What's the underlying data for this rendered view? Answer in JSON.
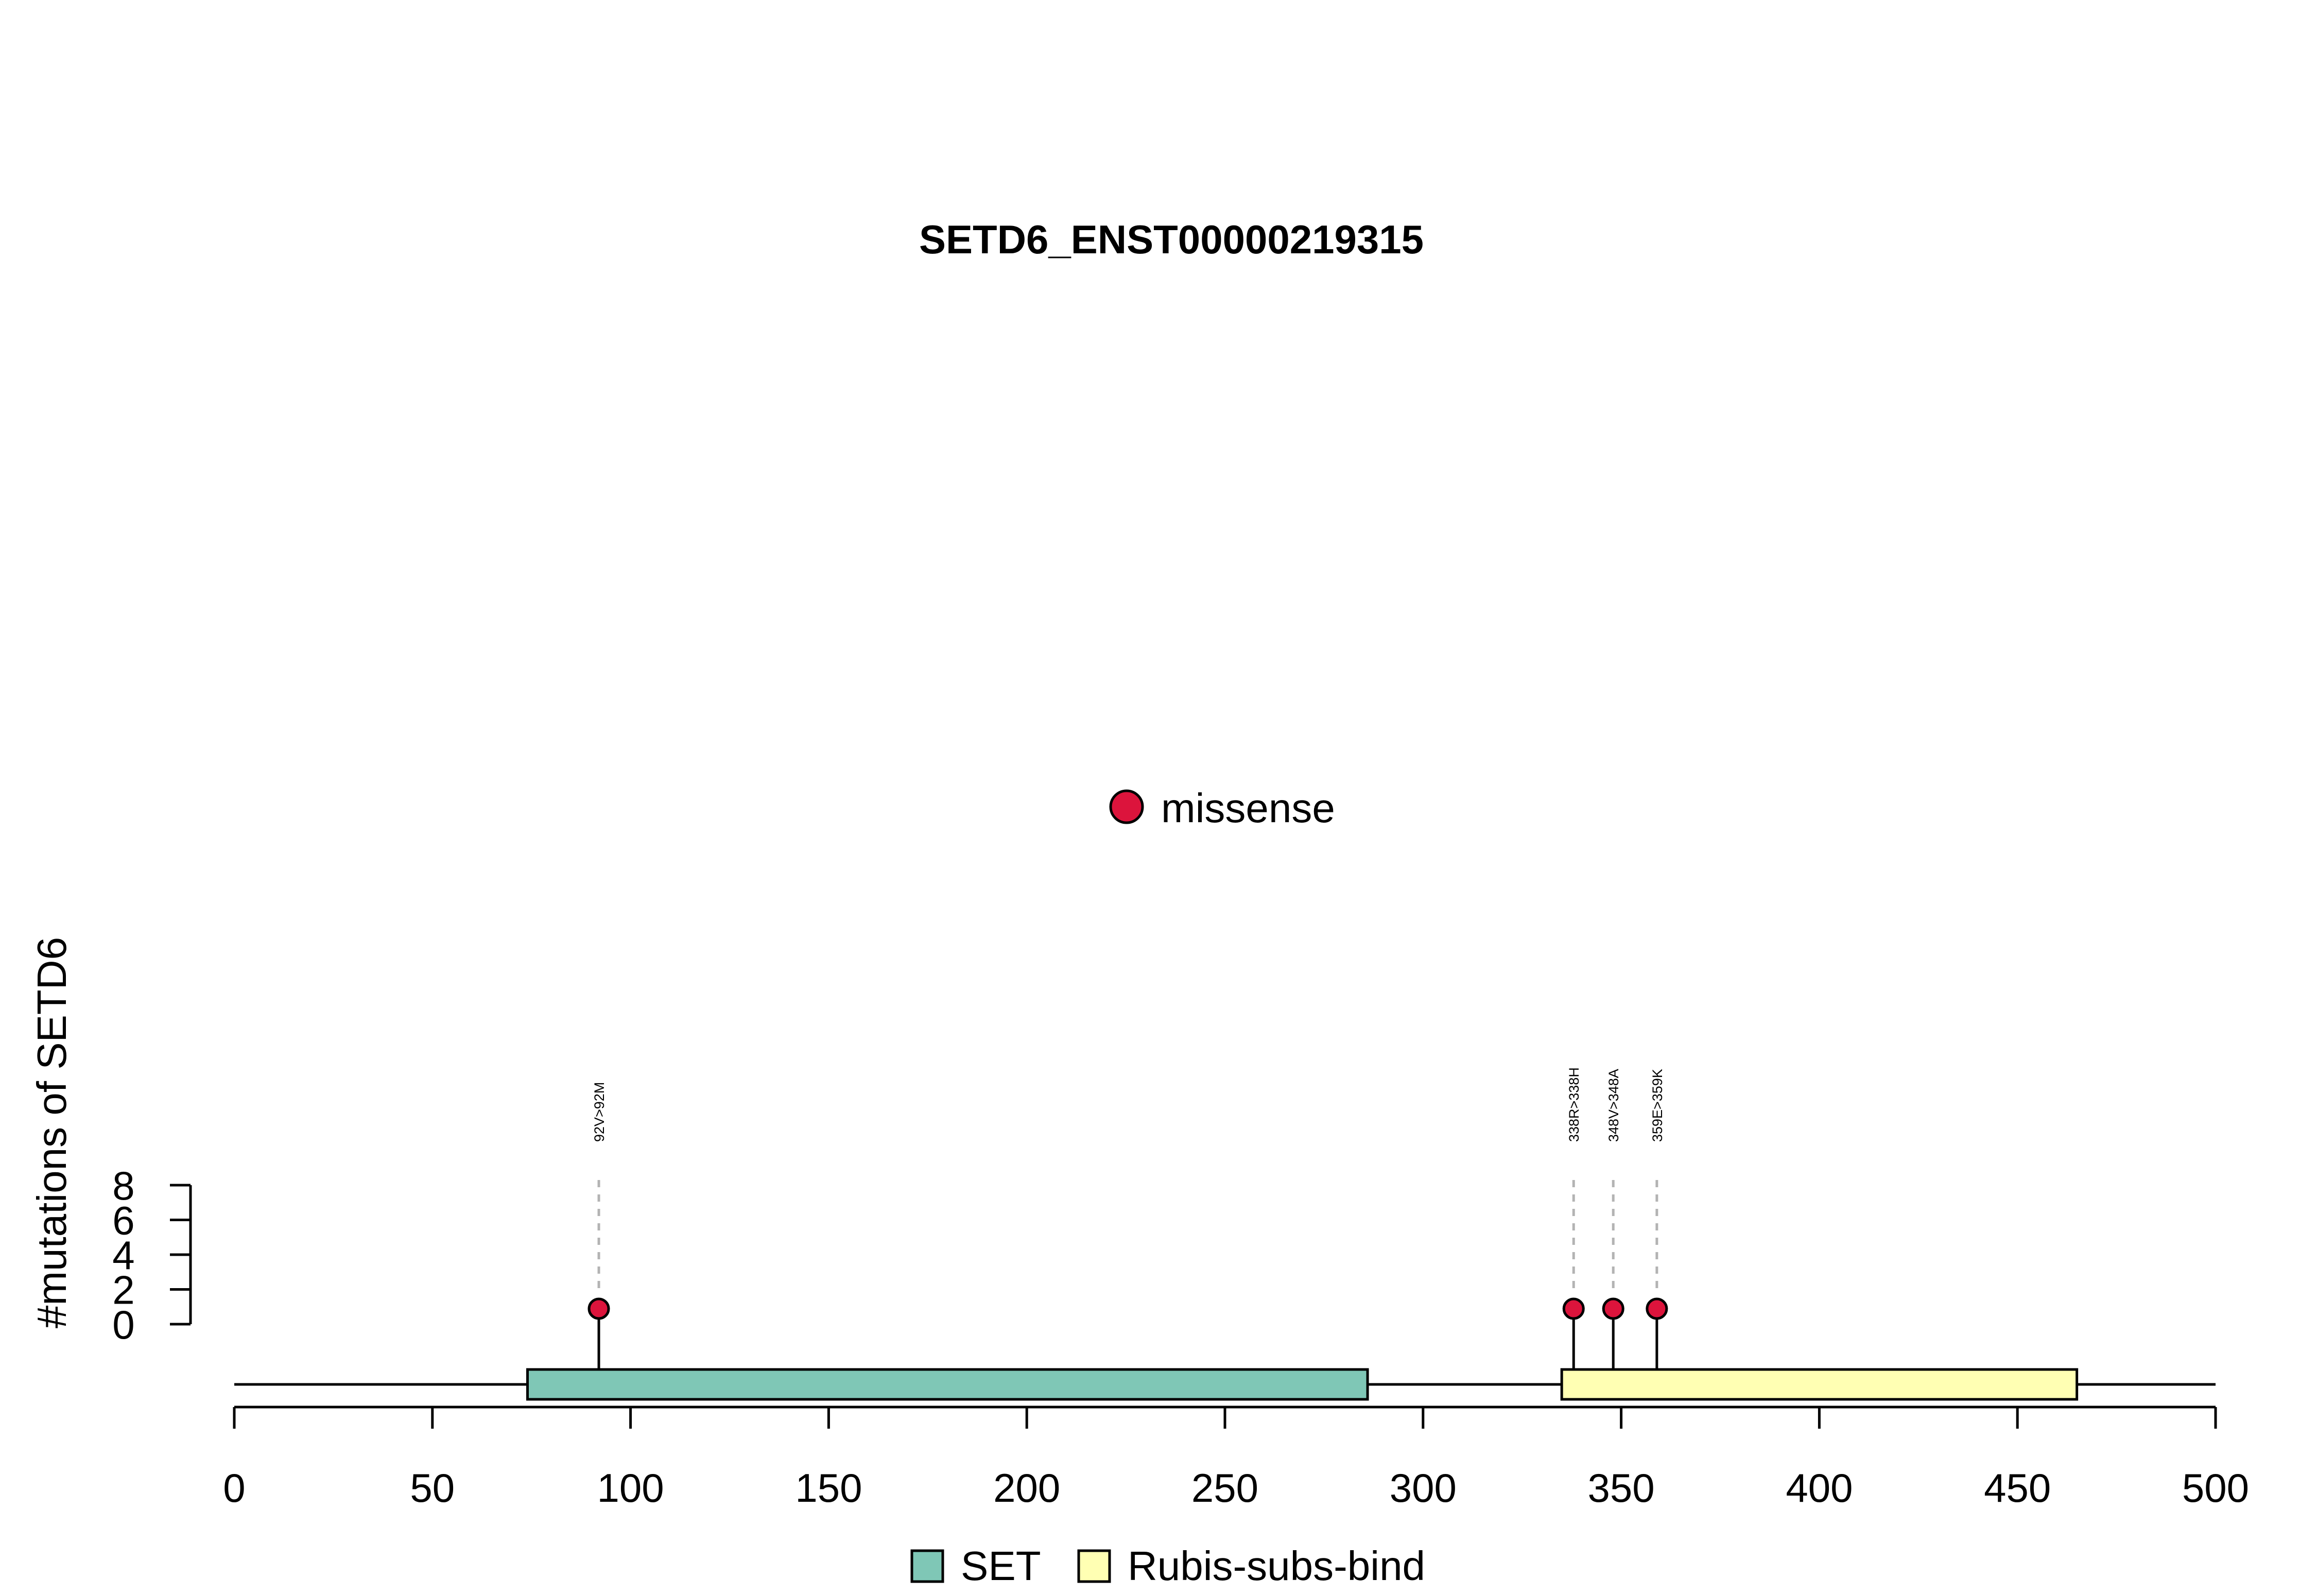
{
  "chart_data": {
    "type": "lollipop",
    "title": "SETD6_ENST00000219315",
    "ylabel": "#mutations of SETD6",
    "xlim": [
      0,
      500
    ],
    "x_ticks": [
      0,
      50,
      100,
      150,
      200,
      250,
      300,
      350,
      400,
      450,
      500
    ],
    "ylim": [
      0,
      8
    ],
    "y_ticks": [
      0,
      2,
      4,
      6,
      8
    ],
    "protein_length": 500,
    "domains": [
      {
        "name": "SET",
        "start": 74,
        "end": 286,
        "color": "#7fc7b6"
      },
      {
        "name": "Rubis-subs-bind",
        "start": 335,
        "end": 465,
        "color": "#ffffb3"
      }
    ],
    "mutations": [
      {
        "position": 92,
        "label": "92V>92M",
        "count": 1,
        "type": "missense"
      },
      {
        "position": 338,
        "label": "338R>338H",
        "count": 1,
        "type": "missense"
      },
      {
        "position": 348,
        "label": "348V>348A",
        "count": 1,
        "type": "missense"
      },
      {
        "position": 359,
        "label": "359E>359K",
        "count": 1,
        "type": "missense"
      }
    ],
    "mutation_legend": [
      {
        "name": "missense",
        "color": "#dc143c"
      }
    ],
    "domain_legend": [
      "SET",
      "Rubis-subs-bind"
    ],
    "legend_placement": "top-center (mutation types), bottom-center (domains)",
    "grid": false
  }
}
